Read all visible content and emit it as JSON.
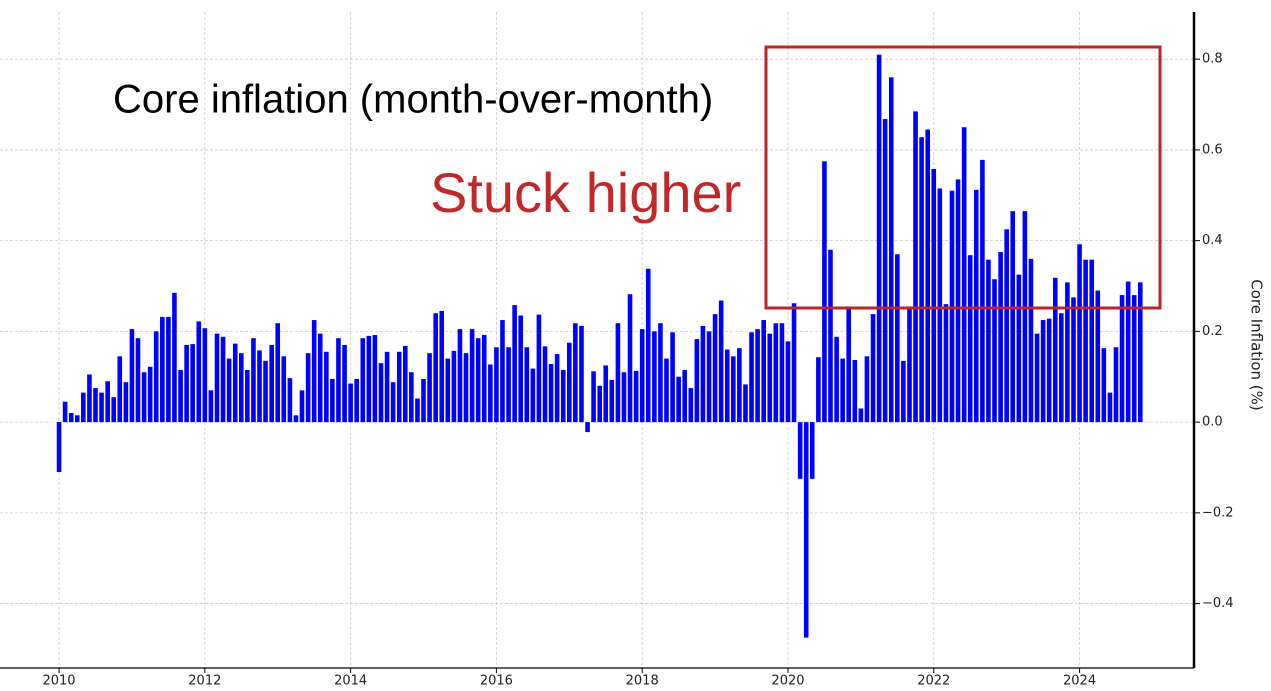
{
  "chart_data": {
    "type": "bar",
    "annotations": [
      "Core inflation (month-over-month)",
      "Stuck higher"
    ],
    "y_label": "Core Inflation (%)",
    "color": "#0000ff",
    "grid": true,
    "xlim": [
      2009.19,
      2025.57
    ],
    "xticks": [
      2010,
      2012,
      2014,
      2016,
      2018,
      2020,
      2022,
      2024
    ],
    "ylim": [
      -0.542,
      0.904
    ],
    "yticks": [
      {
        "value": -0.4,
        "label": "−0.4"
      },
      {
        "value": -0.2,
        "label": "−0.2"
      },
      {
        "value": 0,
        "label": "0.0"
      },
      0.2,
      0.4,
      0.6,
      0.8
    ],
    "x": [
      2010,
      2010.083,
      2010.167,
      2010.25,
      2010.333,
      2010.417,
      2010.5,
      2010.583,
      2010.667,
      2010.75,
      2010.833,
      2010.917,
      2011,
      2011.083,
      2011.167,
      2011.25,
      2011.333,
      2011.417,
      2011.5,
      2011.583,
      2011.667,
      2011.75,
      2011.833,
      2011.917,
      2012,
      2012.083,
      2012.167,
      2012.25,
      2012.333,
      2012.417,
      2012.5,
      2012.583,
      2012.667,
      2012.75,
      2012.833,
      2012.917,
      2013,
      2013.083,
      2013.167,
      2013.25,
      2013.333,
      2013.417,
      2013.5,
      2013.583,
      2013.667,
      2013.75,
      2013.833,
      2013.917,
      2014,
      2014.083,
      2014.167,
      2014.25,
      2014.333,
      2014.417,
      2014.5,
      2014.583,
      2014.667,
      2014.75,
      2014.833,
      2014.917,
      2015,
      2015.083,
      2015.167,
      2015.25,
      2015.333,
      2015.417,
      2015.5,
      2015.583,
      2015.667,
      2015.75,
      2015.833,
      2015.917,
      2016,
      2016.083,
      2016.167,
      2016.25,
      2016.333,
      2016.417,
      2016.5,
      2016.583,
      2016.667,
      2016.75,
      2016.833,
      2016.917,
      2017,
      2017.083,
      2017.167,
      2017.25,
      2017.333,
      2017.417,
      2017.5,
      2017.583,
      2017.667,
      2017.75,
      2017.833,
      2017.917,
      2018,
      2018.083,
      2018.167,
      2018.25,
      2018.333,
      2018.417,
      2018.5,
      2018.583,
      2018.667,
      2018.75,
      2018.833,
      2018.917,
      2019,
      2019.083,
      2019.167,
      2019.25,
      2019.333,
      2019.417,
      2019.5,
      2019.583,
      2019.667,
      2019.75,
      2019.833,
      2019.917,
      2020,
      2020.083,
      2020.167,
      2020.25,
      2020.333,
      2020.417,
      2020.5,
      2020.583,
      2020.667,
      2020.75,
      2020.833,
      2020.917,
      2021,
      2021.083,
      2021.167,
      2021.25,
      2021.333,
      2021.417,
      2021.5,
      2021.583,
      2021.667,
      2021.75,
      2021.833,
      2021.917,
      2022,
      2022.083,
      2022.167,
      2022.25,
      2022.333,
      2022.417,
      2022.5,
      2022.583,
      2022.667,
      2022.75,
      2022.833,
      2022.917,
      2023,
      2023.083,
      2023.167,
      2023.25,
      2023.333,
      2023.417,
      2023.5,
      2023.583,
      2023.667,
      2023.75,
      2023.833,
      2023.917,
      2024,
      2024.083,
      2024.167,
      2024.25,
      2024.333,
      2024.417,
      2024.5,
      2024.583,
      2024.667,
      2024.75,
      2024.833
    ],
    "values": [
      -0.11,
      0.045,
      0.02,
      0.015,
      0.065,
      0.105,
      0.075,
      0.065,
      0.09,
      0.055,
      0.145,
      0.088,
      0.205,
      0.185,
      0.11,
      0.122,
      0.2,
      0.232,
      0.232,
      0.285,
      0.115,
      0.17,
      0.172,
      0.222,
      0.207,
      0.07,
      0.195,
      0.188,
      0.14,
      0.173,
      0.152,
      0.115,
      0.185,
      0.158,
      0.135,
      0.17,
      0.218,
      0.145,
      0.097,
      0.015,
      0.07,
      0.152,
      0.225,
      0.195,
      0.155,
      0.095,
      0.185,
      0.17,
      0.085,
      0.095,
      0.185,
      0.19,
      0.192,
      0.13,
      0.155,
      0.088,
      0.155,
      0.168,
      0.11,
      0.052,
      0.095,
      0.152,
      0.24,
      0.245,
      0.14,
      0.157,
      0.205,
      0.152,
      0.205,
      0.185,
      0.192,
      0.127,
      0.165,
      0.225,
      0.165,
      0.258,
      0.235,
      0.165,
      0.118,
      0.237,
      0.167,
      0.128,
      0.15,
      0.115,
      0.175,
      0.218,
      0.212,
      -0.022,
      0.112,
      0.08,
      0.125,
      0.093,
      0.218,
      0.11,
      0.282,
      0.113,
      0.205,
      0.338,
      0.2,
      0.218,
      0.14,
      0.198,
      0.1,
      0.115,
      0.075,
      0.183,
      0.212,
      0.2,
      0.238,
      0.268,
      0.16,
      0.145,
      0.163,
      0.083,
      0.198,
      0.205,
      0.225,
      0.195,
      0.218,
      0.218,
      0.178,
      0.262,
      -0.125,
      -0.475,
      -0.125,
      0.143,
      0.575,
      0.38,
      0.188,
      0.14,
      0.255,
      0.137,
      0.03,
      0.145,
      0.238,
      0.81,
      0.668,
      0.76,
      0.37,
      0.135,
      0.255,
      0.685,
      0.628,
      0.645,
      0.558,
      0.515,
      0.26,
      0.51,
      0.535,
      0.65,
      0.368,
      0.512,
      0.578,
      0.358,
      0.315,
      0.375,
      0.425,
      0.465,
      0.325,
      0.465,
      0.36,
      0.195,
      0.225,
      0.228,
      0.318,
      0.24,
      0.308,
      0.275,
      0.392,
      0.358,
      0.358,
      0.29,
      0.163,
      0.065,
      0.165,
      0.28,
      0.31,
      0.28,
      0.308
    ]
  }
}
